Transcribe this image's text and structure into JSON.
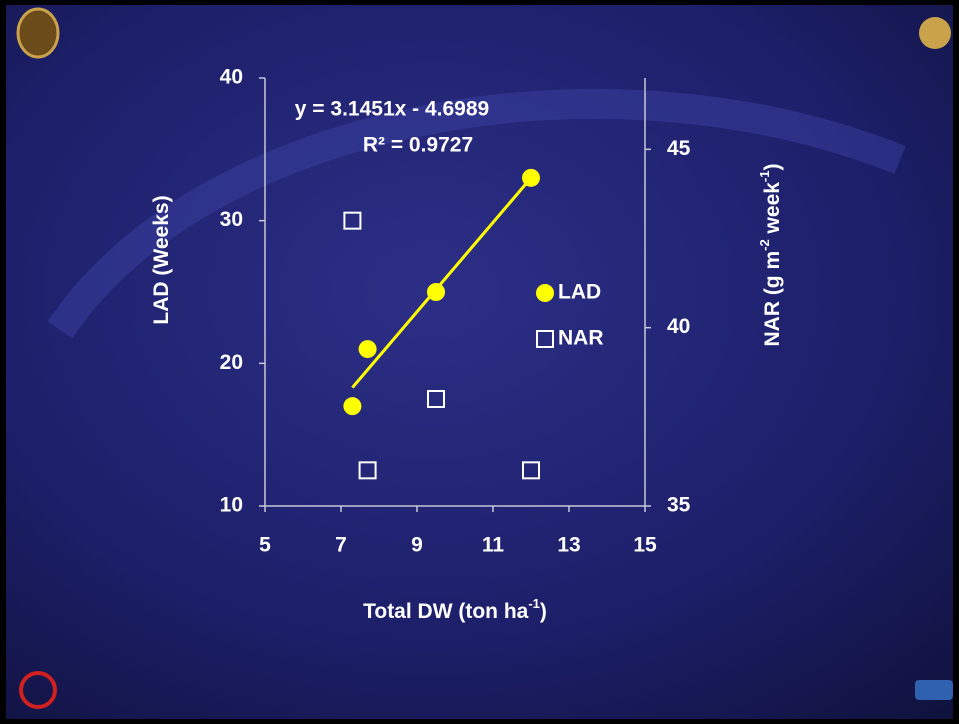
{
  "chart_data": {
    "type": "scatter",
    "xlabel": [
      "Total DW (ton ha",
      "-1",
      ")"
    ],
    "ylabel": [
      "LAD (Weeks)"
    ],
    "y2label": [
      "NAR (g m",
      "-2",
      " week",
      "-1",
      ")"
    ],
    "annotations": [
      "y = 3.1451x - 4.6989",
      "R² = 0.9727"
    ],
    "xlim": [
      5,
      15
    ],
    "xticks": [
      5,
      7,
      9,
      11,
      13,
      15
    ],
    "ylim": [
      10,
      40
    ],
    "yticks": [
      10,
      20,
      30,
      40
    ],
    "y2lim": [
      35,
      47
    ],
    "y2ticks": [
      35,
      40,
      45
    ],
    "series": [
      {
        "name": "LAD",
        "color": "#ffff00",
        "marker": "circle",
        "x": [
          7.3,
          7.7,
          9.5,
          12
        ],
        "values": [
          17,
          21,
          25,
          33
        ]
      },
      {
        "name": "NAR",
        "color": "#ffffff",
        "marker": "square",
        "axis": "y2",
        "x": [
          7.3,
          7.7,
          9.5,
          12
        ],
        "values": [
          43,
          36,
          38,
          36
        ]
      }
    ],
    "trendline": {
      "color": "#ffff00",
      "x": [
        7.3,
        12
      ],
      "values": [
        18.3,
        33
      ]
    }
  }
}
